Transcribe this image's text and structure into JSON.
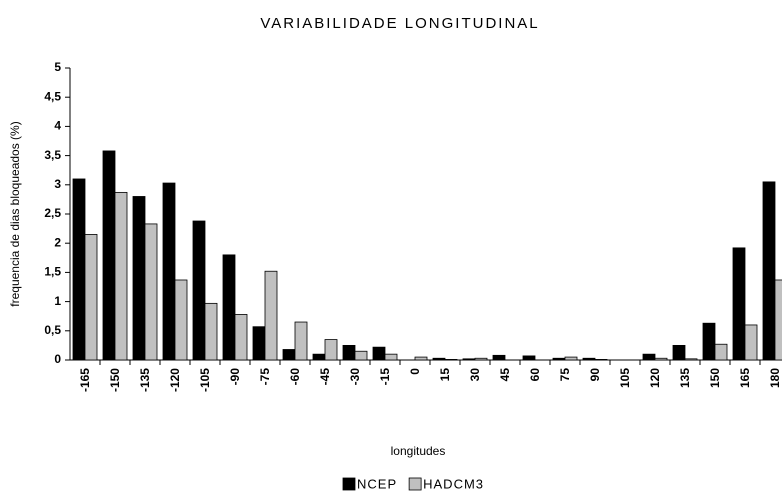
{
  "chart_data": {
    "type": "bar",
    "title": "VARIABILIDADE LONGITUDINAL",
    "x_label": "longitudes",
    "y_label": "frequencia de dias bloqueados (%)",
    "categories": [
      "-165",
      "-150",
      "-135",
      "-120",
      "-105",
      "-90",
      "-75",
      "-60",
      "-45",
      "-30",
      "-15",
      "0",
      "15",
      "30",
      "45",
      "60",
      "75",
      "90",
      "105",
      "120",
      "135",
      "150",
      "165",
      "180"
    ],
    "series": [
      {
        "name": "NCEP",
        "color": "#000000",
        "values": [
          3.1,
          3.58,
          2.8,
          3.03,
          2.38,
          1.8,
          0.57,
          0.18,
          0.1,
          0.25,
          0.22,
          0,
          0.03,
          0.02,
          0.08,
          0.07,
          0.03,
          0.03,
          0,
          0.1,
          0.25,
          0.63,
          1.92,
          3.05
        ]
      },
      {
        "name": "HADCM3",
        "color": "#c0c0c0",
        "values": [
          2.15,
          2.87,
          2.33,
          1.37,
          0.97,
          0.78,
          1.52,
          0.65,
          0.35,
          0.15,
          0.1,
          0.05,
          0.01,
          0.03,
          0,
          0,
          0.05,
          0.01,
          0,
          0.03,
          0.02,
          0.27,
          0.6,
          1.37
        ]
      }
    ],
    "ylim": [
      0,
      5
    ],
    "yticks": [
      0,
      {
        "value": 0.5,
        "label": "0,5"
      },
      1,
      {
        "value": 1.5,
        "label": "1,5"
      },
      2,
      {
        "value": 2.5,
        "label": "2,5"
      },
      3,
      {
        "value": 3.5,
        "label": "3,5"
      },
      4,
      {
        "value": 4.5,
        "label": "4,5"
      },
      5
    ],
    "legend": "bottom"
  }
}
